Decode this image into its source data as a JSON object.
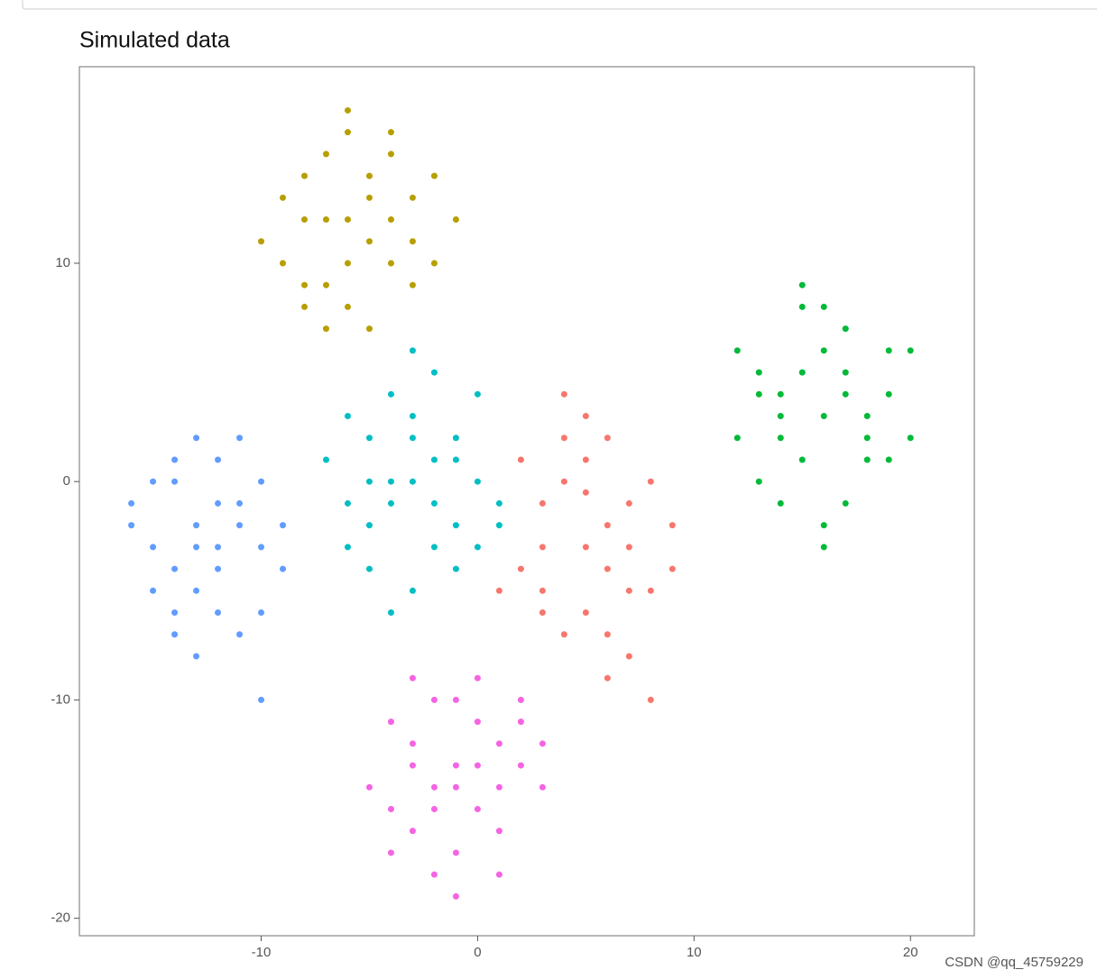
{
  "chart_data": {
    "type": "scatter",
    "title": "Simulated data",
    "xlim": [
      -18.4,
      22.95
    ],
    "ylim": [
      -20.8,
      19.0
    ],
    "xticks": [
      -10,
      0,
      10,
      20
    ],
    "yticks": [
      -20,
      -10,
      0,
      10
    ],
    "series": [
      {
        "color": "#F8766D",
        "x": [
          3,
          4,
          5,
          6,
          7,
          8,
          2,
          3,
          5,
          6,
          7,
          9,
          4,
          5,
          6,
          3,
          2,
          8,
          7,
          5,
          4,
          6,
          9,
          1,
          8,
          6,
          3,
          5,
          7,
          4
        ],
        "values": [
          -1,
          0,
          1,
          -2,
          -3,
          0,
          -4,
          -5,
          -6,
          -4,
          -1,
          -2,
          2,
          3,
          -7,
          -3,
          1,
          -5,
          -8,
          -0.5,
          4,
          2,
          -4,
          -5,
          -10,
          -9,
          -6,
          -3,
          -5,
          -7
        ]
      },
      {
        "color": "#B79F00",
        "x": [
          -8,
          -7,
          -6,
          -5,
          -4,
          -3,
          -9,
          -8,
          -7,
          -6,
          -5,
          -4,
          -3,
          -2,
          -10,
          -6,
          -7,
          -5,
          -4,
          -8,
          -6,
          -3,
          -1,
          -9,
          -5,
          -7,
          -4,
          -6,
          -2,
          -8
        ],
        "values": [
          14,
          15,
          16,
          13,
          12,
          11,
          10,
          12,
          9,
          8,
          7,
          10,
          13,
          14,
          11,
          17,
          12,
          11,
          15,
          8,
          10,
          9,
          12,
          13,
          14,
          7,
          16,
          12,
          10,
          9
        ]
      },
      {
        "color": "#00BA38",
        "x": [
          12,
          13,
          14,
          15,
          16,
          17,
          18,
          19,
          20,
          13,
          14,
          15,
          16,
          17,
          18,
          19,
          14,
          15,
          16,
          17,
          18,
          12,
          13,
          16,
          20,
          15,
          17,
          19,
          16,
          14
        ],
        "values": [
          6,
          4,
          2,
          5,
          3,
          7,
          1,
          4,
          2,
          0,
          -1,
          8,
          -2,
          5,
          2,
          6,
          4,
          1,
          6,
          -1,
          3,
          2,
          5,
          -3,
          6,
          9,
          4,
          1,
          8,
          3
        ]
      },
      {
        "color": "#00BFC4",
        "x": [
          -7,
          -6,
          -5,
          -4,
          -3,
          -2,
          -1,
          0,
          1,
          -6,
          -5,
          -4,
          -3,
          -2,
          -1,
          0,
          -5,
          -4,
          -3,
          -2,
          -1,
          -6,
          -4,
          -2,
          0,
          -3,
          -1,
          -5,
          -3,
          1
        ],
        "values": [
          1,
          -1,
          2,
          0,
          3,
          1,
          -2,
          0,
          -1,
          -3,
          -4,
          4,
          -5,
          -3,
          2,
          4,
          -2,
          -1,
          0,
          5,
          -4,
          3,
          -6,
          -1,
          -3,
          2,
          1,
          0,
          6,
          -2
        ]
      },
      {
        "color": "#619CFF",
        "x": [
          -16,
          -15,
          -14,
          -13,
          -12,
          -11,
          -10,
          -9,
          -15,
          -14,
          -13,
          -12,
          -11,
          -10,
          -14,
          -13,
          -12,
          -16,
          -11,
          -10,
          -13,
          -12,
          -14,
          -9,
          -15,
          -13,
          -11,
          -12,
          -14,
          -10
        ],
        "values": [
          -1,
          -3,
          0,
          -2,
          -4,
          -1,
          -3,
          -2,
          -5,
          -6,
          2,
          1,
          -7,
          0,
          -4,
          -5,
          -3,
          -2,
          2,
          -6,
          -8,
          -1,
          1,
          -4,
          0,
          -3,
          -2,
          -6,
          -7,
          -10
        ]
      },
      {
        "color": "#F564E3",
        "x": [
          -4,
          -3,
          -2,
          -1,
          0,
          1,
          2,
          3,
          -4,
          -3,
          -2,
          -1,
          0,
          1,
          2,
          -3,
          -2,
          -1,
          0,
          1,
          -5,
          -4,
          3,
          -1,
          0,
          -2,
          1,
          2,
          -3,
          -1
        ],
        "values": [
          -11,
          -12,
          -10,
          -13,
          -9,
          -12,
          -11,
          -14,
          -15,
          -16,
          -14,
          -17,
          -15,
          -16,
          -13,
          -13,
          -18,
          -19,
          -11,
          -14,
          -14,
          -17,
          -12,
          -10,
          -13,
          -15,
          -18,
          -10,
          -9,
          -14
        ]
      }
    ]
  },
  "watermark": "CSDN @qq_45759229"
}
